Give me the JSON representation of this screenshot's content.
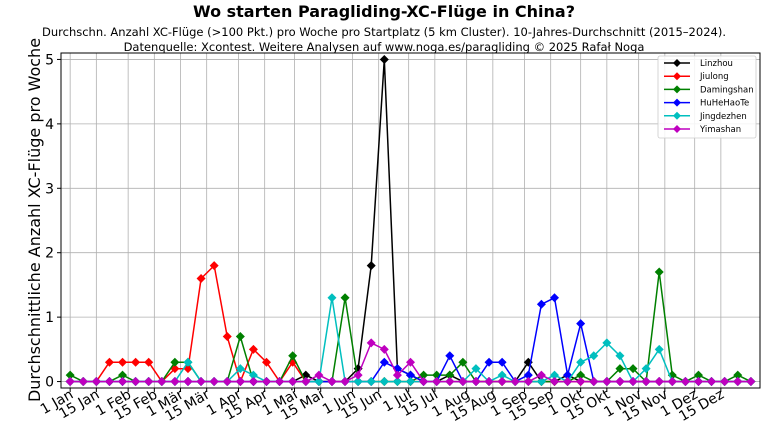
{
  "chart_data": {
    "type": "line",
    "title": "Wo starten Paragliding-XC-Flüge in China?",
    "subtitle_lines": [
      "Durchschn. Anzahl XC-Flüge (>100 Pkt.) pro Woche pro Startplatz (5 km Cluster). 10-Jahres-Durchschnitt (2015–2024).",
      "Datenquelle: Xcontest. Weitere Analysen auf www.noga.es/paragliding © 2025 Rafał Noga"
    ],
    "xlabel": "",
    "ylabel": "Durchschnittliche Anzahl XC-Flüge pro Woche",
    "xlim": [
      0.3,
      53.7
    ],
    "ylim": [
      -0.1,
      5.1
    ],
    "yticks": [
      0,
      1,
      2,
      3,
      4,
      5
    ],
    "xticks": [
      {
        "pos": 1,
        "label": "1 Jan"
      },
      {
        "pos": 3,
        "label": "15 Jan"
      },
      {
        "pos": 5.43,
        "label": "1 Feb"
      },
      {
        "pos": 7.43,
        "label": "15 Feb"
      },
      {
        "pos": 9.43,
        "label": "1 Mär"
      },
      {
        "pos": 11.43,
        "label": "15 Mär"
      },
      {
        "pos": 13.86,
        "label": "1 Apr"
      },
      {
        "pos": 15.86,
        "label": "15 Apr"
      },
      {
        "pos": 18.14,
        "label": "1 Mai"
      },
      {
        "pos": 20.14,
        "label": "15 Mai"
      },
      {
        "pos": 22.57,
        "label": "1 Jun"
      },
      {
        "pos": 24.57,
        "label": "15 Jun"
      },
      {
        "pos": 26.86,
        "label": "1 Jul"
      },
      {
        "pos": 28.86,
        "label": "15 Jul"
      },
      {
        "pos": 31.29,
        "label": "1 Aug"
      },
      {
        "pos": 33.29,
        "label": "15 Aug"
      },
      {
        "pos": 35.71,
        "label": "1 Sep"
      },
      {
        "pos": 37.71,
        "label": "15 Sep"
      },
      {
        "pos": 40.0,
        "label": "1 Okt"
      },
      {
        "pos": 42.0,
        "label": "15 Okt"
      },
      {
        "pos": 44.43,
        "label": "1 Nov"
      },
      {
        "pos": 46.43,
        "label": "15 Nov"
      },
      {
        "pos": 48.71,
        "label": "1 Dez"
      },
      {
        "pos": 50.71,
        "label": "15 Dez"
      }
    ],
    "x": [
      1,
      2,
      3,
      4,
      5,
      6,
      7,
      8,
      9,
      10,
      11,
      12,
      13,
      14,
      15,
      16,
      17,
      18,
      19,
      20,
      21,
      22,
      23,
      24,
      25,
      26,
      27,
      28,
      29,
      30,
      31,
      32,
      33,
      34,
      35,
      36,
      37,
      38,
      39,
      40,
      41,
      42,
      43,
      44,
      45,
      46,
      47,
      48,
      49,
      50,
      51,
      52,
      53
    ],
    "grid": true,
    "legend_position": "top-right",
    "series": [
      {
        "name": "Linzhou",
        "color": "#000000",
        "marker": "diamond",
        "values": [
          0,
          0,
          0,
          0,
          0,
          0,
          0,
          0,
          0,
          0,
          0,
          0,
          0,
          0,
          0,
          0,
          0,
          0,
          0.1,
          0,
          0,
          0,
          0.2,
          1.8,
          5.0,
          0.2,
          0.1,
          0,
          0,
          0.1,
          0,
          0,
          0,
          0,
          0,
          0.3,
          0,
          0,
          0.1,
          0,
          0,
          0,
          0,
          0,
          0,
          0,
          0,
          0,
          0,
          0,
          0,
          0,
          0
        ]
      },
      {
        "name": "Jiulong",
        "color": "#ff0000",
        "marker": "diamond",
        "values": [
          0,
          0,
          0,
          0.3,
          0.3,
          0.3,
          0.3,
          0,
          0.2,
          0.2,
          1.6,
          1.8,
          0.7,
          0,
          0.5,
          0.3,
          0,
          0.3,
          0,
          0,
          0,
          0,
          0,
          0,
          0,
          0,
          0,
          0,
          0,
          0,
          0,
          0,
          0,
          0,
          0,
          0,
          0,
          0,
          0,
          0,
          0,
          0,
          0,
          0,
          0,
          0,
          0,
          0,
          0,
          0,
          0,
          0,
          0
        ]
      },
      {
        "name": "Damingshan",
        "color": "#008000",
        "marker": "diamond",
        "values": [
          0.1,
          0,
          0,
          0,
          0.1,
          0,
          0,
          0,
          0.3,
          0.3,
          0,
          0,
          0,
          0.7,
          0,
          0,
          0,
          0.4,
          0,
          0,
          0,
          1.3,
          0,
          0,
          0,
          0,
          0,
          0.1,
          0.1,
          0.1,
          0.3,
          0,
          0,
          0,
          0,
          0,
          0,
          0,
          0,
          0.1,
          0,
          0,
          0.2,
          0.2,
          0,
          1.7,
          0.1,
          0,
          0.1,
          0,
          0,
          0.1,
          0
        ]
      },
      {
        "name": "HuHeHaoTe",
        "color": "#0000ff",
        "marker": "diamond",
        "values": [
          0,
          0,
          0,
          0,
          0,
          0,
          0,
          0,
          0,
          0,
          0,
          0,
          0,
          0,
          0,
          0,
          0,
          0,
          0,
          0,
          0,
          0,
          0,
          0,
          0.3,
          0.2,
          0.1,
          0,
          0,
          0.4,
          0,
          0,
          0.3,
          0.3,
          0,
          0.1,
          1.2,
          1.3,
          0.1,
          0.9,
          0,
          0,
          0,
          0,
          0,
          0,
          0,
          0,
          0,
          0,
          0,
          0,
          0
        ]
      },
      {
        "name": "Jingdezhen",
        "color": "#00bfbf",
        "marker": "diamond",
        "values": [
          0,
          0,
          0,
          0,
          0,
          0,
          0,
          0,
          0,
          0.3,
          0,
          0,
          0,
          0.2,
          0.1,
          0,
          0,
          0,
          0,
          0,
          1.3,
          0,
          0,
          0,
          0,
          0,
          0,
          0,
          0,
          0,
          0,
          0.2,
          0,
          0.1,
          0,
          0,
          0,
          0.1,
          0,
          0.3,
          0.4,
          0.6,
          0.4,
          0,
          0.2,
          0.5,
          0,
          0,
          0,
          0,
          0,
          0,
          0
        ]
      },
      {
        "name": "Yimashan",
        "color": "#bf00bf",
        "marker": "diamond",
        "values": [
          0,
          0,
          0,
          0,
          0,
          0,
          0,
          0,
          0,
          0,
          0,
          0,
          0,
          0,
          0,
          0,
          0,
          0,
          0,
          0.1,
          0,
          0,
          0.1,
          0.6,
          0.5,
          0.1,
          0.3,
          0,
          0,
          0,
          0,
          0,
          0,
          0,
          0,
          0,
          0.1,
          0,
          0,
          0,
          0,
          0,
          0,
          0,
          0,
          0,
          0,
          0,
          0,
          0,
          0,
          0,
          0
        ]
      }
    ]
  }
}
